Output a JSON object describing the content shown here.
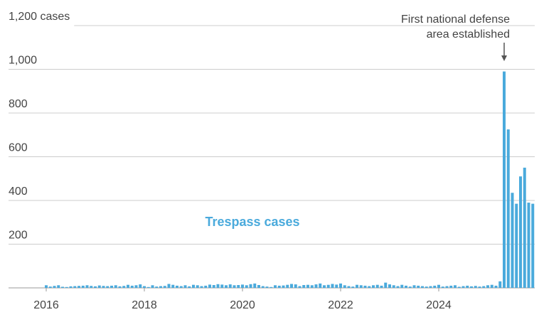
{
  "chart_data": {
    "type": "bar",
    "categories": [
      "2016",
      null,
      null,
      null,
      null,
      null,
      null,
      null,
      null,
      null,
      null,
      null,
      null,
      null,
      null,
      null,
      null,
      null,
      null,
      null,
      null,
      null,
      null,
      null,
      "2018",
      null,
      null,
      null,
      null,
      null,
      null,
      null,
      null,
      null,
      null,
      null,
      null,
      null,
      null,
      null,
      null,
      null,
      null,
      null,
      null,
      null,
      null,
      null,
      "2020",
      null,
      null,
      null,
      null,
      null,
      null,
      null,
      null,
      null,
      null,
      null,
      null,
      null,
      null,
      null,
      null,
      null,
      null,
      null,
      null,
      null,
      null,
      null,
      "2022",
      null,
      null,
      null,
      null,
      null,
      null,
      null,
      null,
      null,
      null,
      null,
      null,
      null,
      null,
      null,
      null,
      null,
      null,
      null,
      null,
      null,
      null,
      null,
      "2024",
      null,
      null,
      null,
      null,
      null,
      null,
      null,
      null,
      null,
      null,
      null,
      null,
      null,
      null,
      null,
      null,
      null,
      null,
      null,
      null,
      null,
      null,
      null
    ],
    "series": [
      {
        "name": "Trespass cases",
        "color": "#4aaadc",
        "values": [
          12,
          6,
          9,
          12,
          5,
          4,
          7,
          8,
          9,
          10,
          12,
          9,
          7,
          11,
          9,
          8,
          10,
          12,
          7,
          9,
          14,
          10,
          12,
          16,
          8,
          4,
          12,
          6,
          8,
          9,
          18,
          14,
          10,
          8,
          12,
          7,
          14,
          12,
          8,
          10,
          15,
          13,
          17,
          15,
          12,
          16,
          12,
          13,
          15,
          12,
          17,
          20,
          13,
          8,
          6,
          4,
          12,
          10,
          11,
          14,
          18,
          16,
          8,
          13,
          14,
          12,
          16,
          20,
          12,
          14,
          18,
          15,
          20,
          12,
          8,
          6,
          14,
          12,
          10,
          8,
          12,
          14,
          10,
          24,
          16,
          12,
          8,
          14,
          10,
          6,
          12,
          10,
          8,
          6,
          8,
          10,
          14,
          6,
          8,
          10,
          12,
          5,
          8,
          10,
          7,
          9,
          6,
          8,
          12,
          14,
          10,
          30,
          990,
          725,
          435,
          385,
          510,
          550,
          390,
          385
        ]
      }
    ],
    "annotation": [
      "First national defense",
      "area established"
    ],
    "ylim": [
      0,
      1200
    ],
    "yticks": [
      200,
      400,
      600,
      800,
      {
        "value": 1000,
        "label": "1,000"
      },
      {
        "value": 1200,
        "label": "1,200 cases"
      }
    ],
    "grid": true
  }
}
